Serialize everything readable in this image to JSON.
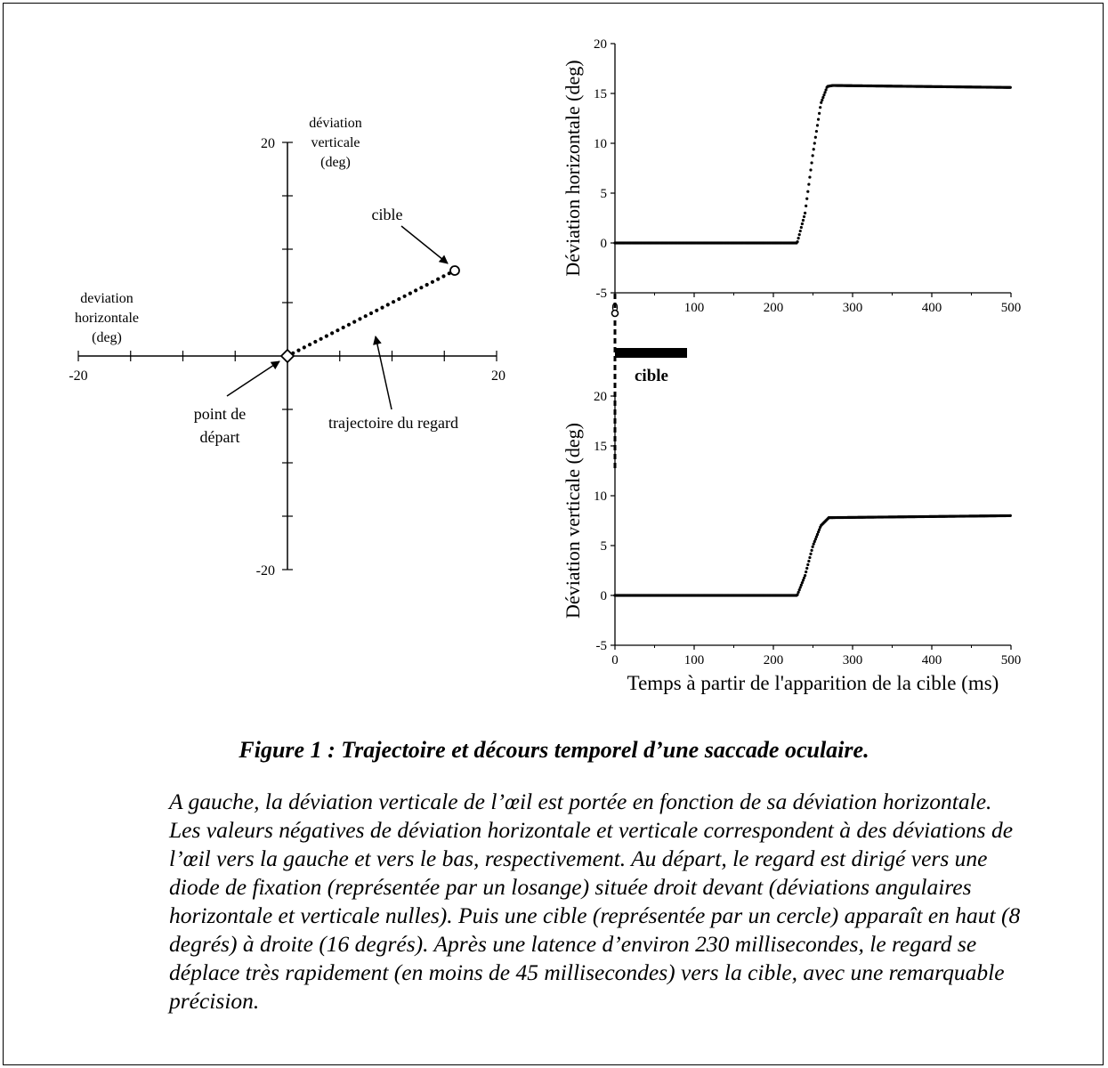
{
  "chart_data": [
    {
      "type": "scatter",
      "name": "trajectory",
      "xlim": [
        -20,
        20
      ],
      "ylim": [
        -20,
        20
      ],
      "x_ticks": [
        "-20",
        "20"
      ],
      "y_ticks": [
        "20",
        "-20"
      ],
      "xlabel": [
        "deviation",
        "horizontale",
        "(deg)"
      ],
      "ylabel": [
        "déviation",
        "verticale",
        "(deg)"
      ],
      "start_point": {
        "x": 0,
        "y": 0,
        "marker": "diamond"
      },
      "target_point": {
        "x": 16,
        "y": 8,
        "marker": "circle"
      },
      "path": [
        [
          0,
          0
        ],
        [
          16,
          8
        ]
      ],
      "annotations": {
        "target": "cible",
        "start": [
          "point de",
          "départ"
        ],
        "path": "trajectoire du regard"
      }
    },
    {
      "type": "scatter",
      "name": "horizontal-vs-time",
      "ylabel": "Déviation horizontale (deg)",
      "xlim": [
        0,
        500
      ],
      "ylim": [
        -5,
        20
      ],
      "x_ticks": [
        "0",
        "100",
        "200",
        "300",
        "400",
        "500"
      ],
      "y_ticks": [
        "-5",
        "0",
        "5",
        "10",
        "15",
        "20"
      ],
      "profile": [
        [
          0,
          0
        ],
        [
          230,
          0
        ],
        [
          240,
          3
        ],
        [
          250,
          9
        ],
        [
          260,
          14
        ],
        [
          268,
          15.7
        ],
        [
          275,
          15.8
        ],
        [
          500,
          15.6
        ]
      ]
    },
    {
      "type": "scatter",
      "name": "vertical-vs-time",
      "ylabel": "Déviation verticale (deg)",
      "xlabel": "Temps à partir de l'apparition de la cible (ms)",
      "xlim": [
        0,
        500
      ],
      "ylim": [
        -5,
        20
      ],
      "x_ticks": [
        "0",
        "100",
        "200",
        "300",
        "400",
        "500"
      ],
      "y_ticks": [
        "-5",
        "0",
        "5",
        "10",
        "15",
        "20"
      ],
      "profile": [
        [
          0,
          0
        ],
        [
          230,
          0
        ],
        [
          240,
          2
        ],
        [
          250,
          5
        ],
        [
          260,
          7
        ],
        [
          270,
          7.8
        ],
        [
          500,
          8
        ]
      ],
      "target_bar": {
        "from": 0,
        "to": 100,
        "label": "cible"
      }
    }
  ],
  "caption": {
    "title": "Figure 1 : Trajectoire et décours temporel d’une saccade oculaire.",
    "lines": [
      "A gauche, la déviation verticale de l’œil est portée en fonction de sa déviation horizontale.",
      "Les valeurs négatives de déviation horizontale et verticale correspondent à des déviations de",
      "l’œil vers la gauche et vers le bas, respectivement. Au départ, le regard est dirigé vers une",
      "diode de fixation (représentée par un losange) située droit devant (déviations angulaires",
      "horizontale et verticale nulles). Puis une cible (représentée par un cercle) apparaît en haut (8",
      "degrés) à droite (16 degrés). Après une latence d’environ 230 millisecondes, le regard se",
      "déplace très rapidement (en moins de 45 millisecondes) vers la cible, avec une remarquable",
      "précision."
    ]
  }
}
